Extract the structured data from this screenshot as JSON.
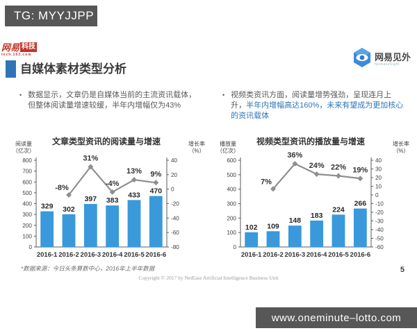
{
  "overlays": {
    "top_tag": "TG: MYYJJPP",
    "bottom_url": "www.oneminute–lotto.com"
  },
  "header": {
    "logo_left": {
      "part1": "网易",
      "part2": "科技",
      "sub": "tech.163.com"
    },
    "title": "自媒体素材类型分析",
    "logo_right": {
      "name": "网易见外",
      "sub": "NeteaseSight"
    }
  },
  "bullets": {
    "left_marker": "•",
    "left": "数据显示，文章仍是自媒体当前的主流资讯载体，但整体阅读量增速较缓，半年内增幅仅为43%",
    "right_marker": "•",
    "right_plain": "视频类资讯方面，阅读量增势强劲，呈现连月上升，",
    "right_highlight": "半年内增幅高达160%，未来有望成为更加核心的资讯载体"
  },
  "colors": {
    "bar": "#3999db",
    "line": "#8f8f8f",
    "accent_blue": "#2e75b6",
    "overlay_bg": "#575757",
    "axis": "#595959"
  },
  "chart_data": [
    {
      "type": "bar+line",
      "title": "文章类型资讯的阅读量与增速",
      "left_axis_label": [
        "阅读量",
        "（亿次）"
      ],
      "right_axis_label": [
        "增长率",
        "（%）"
      ],
      "categories": [
        "2016-1",
        "2016-2",
        "2016-3",
        "2016-4",
        "2016-5",
        "2016-6"
      ],
      "bars": [
        329,
        302,
        397,
        383,
        433,
        470
      ],
      "bar_labels": [
        "329",
        "302",
        "397",
        "383",
        "433",
        "470"
      ],
      "left_ylim": [
        0,
        800
      ],
      "left_step": 100,
      "right_ylim": [
        -80,
        40
      ],
      "right_step": 20,
      "line_x_start_index": 1,
      "line_values": [
        -8,
        31,
        -4,
        13,
        9
      ],
      "line_labels": [
        "-8%",
        "31%",
        "-4%",
        "13%",
        "9%"
      ],
      "grid": false,
      "legend": "none"
    },
    {
      "type": "bar+line",
      "title": "视频类型资讯的播放量与增速",
      "left_axis_label": [
        "播放量",
        "（亿次）"
      ],
      "right_axis_label": [
        "增长率",
        "（%）"
      ],
      "categories": [
        "2016-1",
        "2016-2",
        "2016-3",
        "2016-4",
        "2016-5",
        "2016-6"
      ],
      "bars": [
        102,
        109,
        148,
        183,
        224,
        266
      ],
      "bar_labels": [
        "102",
        "109",
        "148",
        "183",
        "224",
        "266"
      ],
      "left_ylim": [
        0,
        600
      ],
      "left_step": 100,
      "right_ylim": [
        -60,
        40
      ],
      "right_step": 10,
      "line_x_start_index": 1,
      "line_values": [
        7,
        36,
        24,
        22,
        19
      ],
      "line_labels": [
        "7%",
        "36%",
        "24%",
        "22%",
        "19%"
      ],
      "grid": false,
      "legend": "none"
    }
  ],
  "footer": {
    "source_note": "*数据来源：今日头条算数中心，2016年上半年数据",
    "copyright": "Copyright © 2017 by NetEase Artificial Intelligence Business Unit",
    "page_number": "5"
  }
}
